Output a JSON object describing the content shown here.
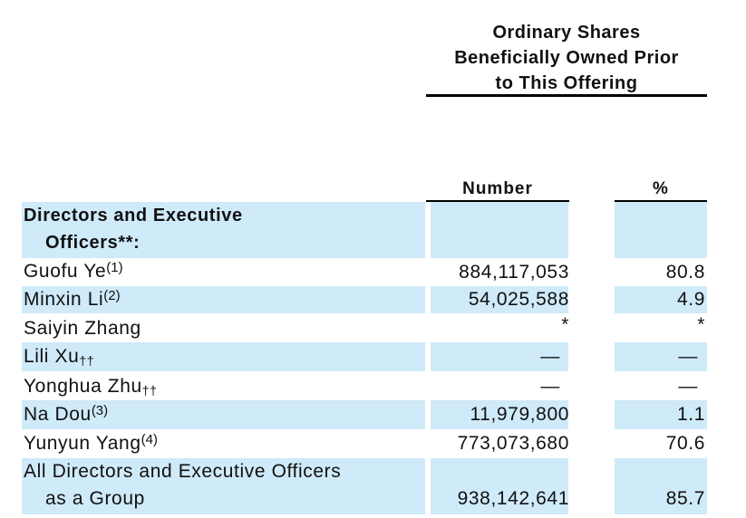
{
  "header": {
    "lines": [
      "Ordinary Shares",
      "Beneficially Owned Prior",
      "to This Offering"
    ],
    "col_number": "Number",
    "col_percent": "%"
  },
  "section": {
    "line1": "Directors and Executive",
    "line2": "Officers**:"
  },
  "rows": [
    {
      "name": "Guofu Ye",
      "note": "(1)",
      "number": "884,117,053",
      "percent": "80.8"
    },
    {
      "name": "Minxin Li",
      "note": "(2)",
      "number": "54,025,588",
      "percent": "4.9"
    },
    {
      "name": "Saiyin Zhang",
      "note": "",
      "number": "*",
      "percent": "*"
    },
    {
      "name": "Lili Xu",
      "note": "††",
      "number": "—",
      "percent": "—"
    },
    {
      "name": "Yonghua Zhu",
      "note": "††",
      "number": "—",
      "percent": "—"
    },
    {
      "name": "Na Dou",
      "note": "(3)",
      "number": "11,979,800",
      "percent": "1.1"
    },
    {
      "name": "Yunyun Yang",
      "note": "(4)",
      "number": "773,073,680",
      "percent": "70.6"
    }
  ],
  "total": {
    "line1": "All Directors and Executive Officers",
    "line2": "as a Group",
    "number": "938,142,641",
    "percent": "85.7"
  }
}
